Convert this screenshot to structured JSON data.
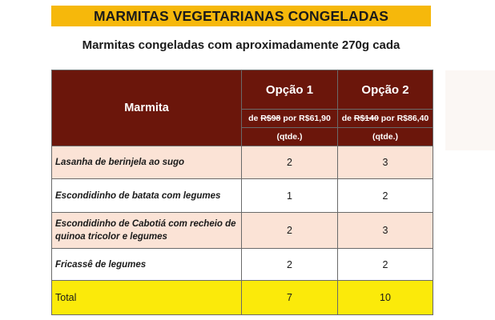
{
  "header": {
    "title": "MARMITAS VEGETARIANAS CONGELADAS",
    "subtitle": "Marmitas congeladas com aproximadamente 270g cada"
  },
  "table": {
    "name_header": "Marmita",
    "options": [
      {
        "label": "Opção 1",
        "price_prefix": "de ",
        "old_price": "R$98",
        "price_suffix": " por R$61,90",
        "qty_label": "(qtde.)"
      },
      {
        "label": "Opção 2",
        "price_prefix": "de ",
        "old_price": "R$140",
        "price_suffix": " por R$86,40",
        "qty_label": "(qtde.)"
      }
    ],
    "rows": [
      {
        "name_line1": "Lasanha de berinjela ao sugo",
        "name_line2": "",
        "opt1": "2",
        "opt2": "3"
      },
      {
        "name_line1": "Escondidinho de batata com legumes",
        "name_line2": "",
        "opt1": "1",
        "opt2": "2"
      },
      {
        "name_line1": "Escondidinho de Cabotiá com recheio de",
        "name_line2": "quinoa tricolor e legumes",
        "opt1": "2",
        "opt2": "3"
      },
      {
        "name_line1": "Fricassê de legumes",
        "name_line2": "",
        "opt1": "2",
        "opt2": "2"
      }
    ],
    "total": {
      "label": "Total",
      "opt1": "7",
      "opt2": "10"
    }
  },
  "colors": {
    "banner": "#f6b80b",
    "header_bg": "#6b160b",
    "row_pink": "#fbe3d6",
    "total_bg": "#fbea0a"
  }
}
